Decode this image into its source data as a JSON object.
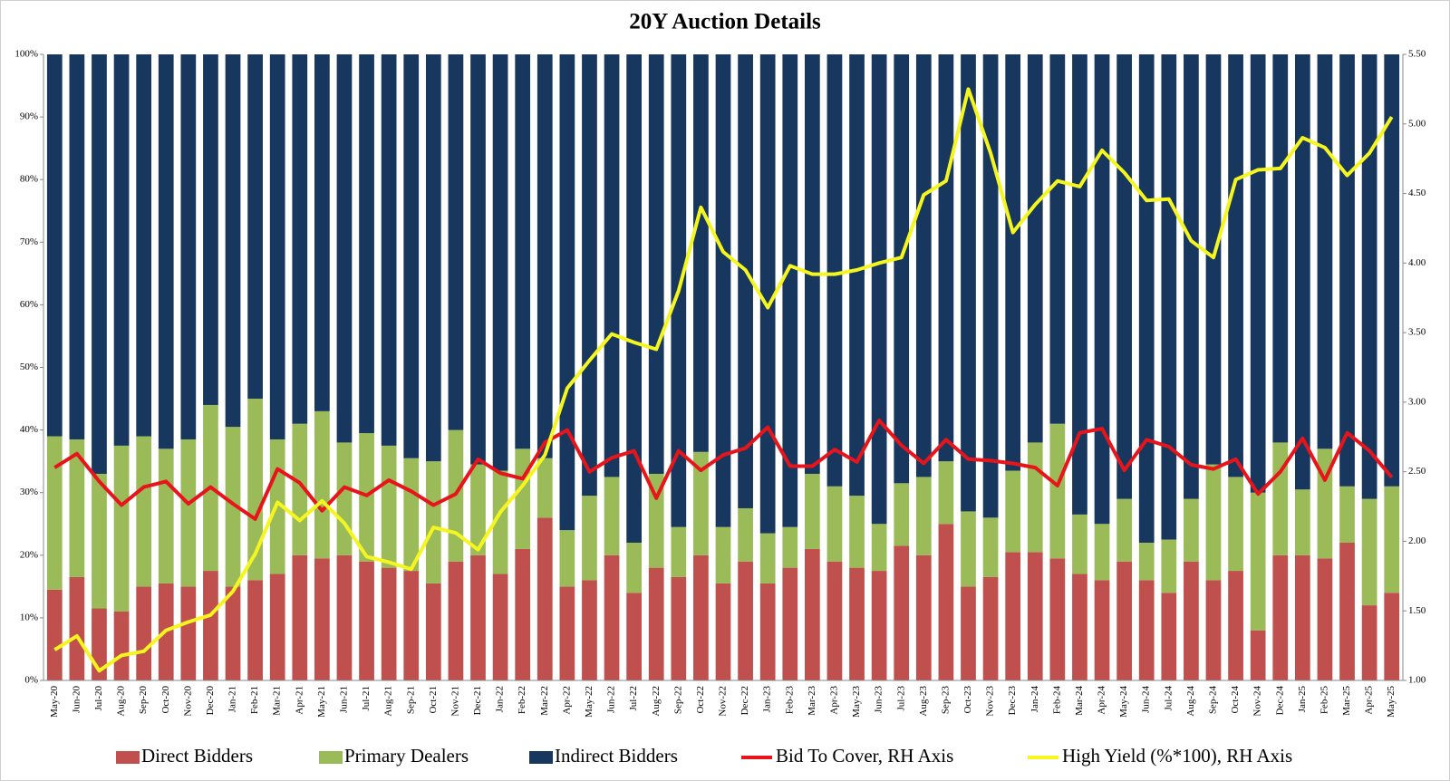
{
  "chart_data": {
    "type": "bar",
    "stacked": true,
    "title": "20Y Auction Details",
    "categories": [
      "May-20",
      "Jun-20",
      "Jul-20",
      "Aug-20",
      "Sep-20",
      "Oct-20",
      "Nov-20",
      "Dec-20",
      "Jan-21",
      "Feb-21",
      "Mar-21",
      "Apr-21",
      "May-21",
      "Jun-21",
      "Jul-21",
      "Aug-21",
      "Sep-21",
      "Oct-21",
      "Nov-21",
      "Dec-21",
      "Jan-22",
      "Feb-22",
      "Mar-22",
      "Apr-22",
      "May-22",
      "Jun-22",
      "Jul-22",
      "Aug-22",
      "Sep-22",
      "Oct-22",
      "Nov-22",
      "Dec-22",
      "Jan-23",
      "Feb-23",
      "Mar-23",
      "Apr-23",
      "May-23",
      "Jun-23",
      "Jul-23",
      "Aug-23",
      "Sep-23",
      "Oct-23",
      "Nov-23",
      "Dec-23",
      "Jan-24",
      "Feb-24",
      "Mar-24",
      "Apr-24",
      "May-24",
      "Jun-24",
      "Jul-24",
      "Aug-24",
      "Sep-24",
      "Oct-24",
      "Nov-24",
      "Dec-24",
      "Jan-25",
      "Feb-25",
      "Mar-25",
      "Apr-25",
      "May-25"
    ],
    "series": [
      {
        "name": "Direct Bidders",
        "type": "bar",
        "color": "#c0504d",
        "values": [
          14.5,
          16.5,
          11.5,
          11,
          15,
          15.5,
          15,
          17.5,
          15,
          16,
          17,
          20,
          19.5,
          20,
          19,
          18,
          17.5,
          15.5,
          19,
          20,
          17,
          21,
          26,
          15,
          16,
          20,
          14,
          18,
          16.5,
          20,
          15.5,
          19,
          15.5,
          18,
          21,
          19,
          18,
          17.5,
          21.5,
          20,
          25,
          15,
          16.5,
          20.5,
          20.5,
          19.5,
          17,
          16,
          19,
          16,
          14,
          19,
          16,
          17.5,
          8,
          20,
          20,
          19.5,
          22,
          12,
          14
        ]
      },
      {
        "name": "Primary Dealers",
        "type": "bar",
        "color": "#9bbb59",
        "values": [
          24.5,
          22,
          21.5,
          26.5,
          24,
          21.5,
          23.5,
          26.5,
          25.5,
          29,
          21.5,
          21,
          23.5,
          18,
          20.5,
          19.5,
          18,
          19.5,
          21,
          14.5,
          16.5,
          16,
          9.5,
          9,
          13.5,
          12.5,
          8,
          15,
          8,
          16.5,
          9,
          8.5,
          8,
          6.5,
          12,
          12,
          11.5,
          7.5,
          10,
          12.5,
          10,
          12,
          9.5,
          13,
          17.5,
          21.5,
          9.5,
          9,
          10,
          6,
          8.5,
          10,
          18.5,
          15,
          22,
          18,
          10.5,
          17.5,
          9,
          17,
          17
        ]
      },
      {
        "name": "Indirect Bidders",
        "type": "bar",
        "color": "#17375e",
        "values": [
          61,
          61.5,
          67,
          62.5,
          61,
          63,
          61.5,
          56,
          59.5,
          55,
          61.5,
          59,
          57,
          62,
          60.5,
          62.5,
          64.5,
          65,
          60,
          65.5,
          66.5,
          63,
          64.5,
          76,
          70.5,
          67.5,
          78,
          67,
          75.5,
          63.5,
          75.5,
          72.5,
          76.5,
          75.5,
          67,
          69,
          70.5,
          75,
          68.5,
          67.5,
          65,
          73,
          74,
          66.5,
          62,
          59,
          73.5,
          75,
          71,
          78,
          77.5,
          71,
          65.5,
          67.5,
          70,
          62,
          69.5,
          63,
          69,
          71,
          69
        ]
      },
      {
        "name": "Bid To Cover, RH Axis",
        "type": "line",
        "axis": "y2",
        "color": "#e8141b",
        "values": [
          2.53,
          2.63,
          2.43,
          2.26,
          2.39,
          2.43,
          2.27,
          2.39,
          2.27,
          2.16,
          2.52,
          2.42,
          2.22,
          2.39,
          2.33,
          2.44,
          2.36,
          2.26,
          2.34,
          2.59,
          2.49,
          2.45,
          2.71,
          2.8,
          2.5,
          2.6,
          2.65,
          2.31,
          2.65,
          2.51,
          2.62,
          2.67,
          2.82,
          2.54,
          2.54,
          2.66,
          2.57,
          2.87,
          2.69,
          2.56,
          2.73,
          2.59,
          2.58,
          2.56,
          2.53,
          2.4,
          2.78,
          2.81,
          2.51,
          2.73,
          2.68,
          2.55,
          2.52,
          2.59,
          2.34,
          2.5,
          2.74,
          2.44,
          2.78,
          2.65,
          2.46
        ]
      },
      {
        "name": "High Yield (%*100), RH Axis",
        "type": "line",
        "axis": "y2",
        "color": "#f5f51f",
        "values": [
          1.22,
          1.32,
          1.07,
          1.18,
          1.21,
          1.36,
          1.42,
          1.47,
          1.64,
          1.91,
          2.28,
          2.15,
          2.29,
          2.13,
          1.89,
          1.85,
          1.8,
          2.1,
          2.06,
          1.94,
          2.21,
          2.4,
          2.62,
          3.1,
          3.3,
          3.49,
          3.43,
          3.38,
          3.8,
          4.4,
          4.08,
          3.95,
          3.68,
          3.98,
          3.92,
          3.92,
          3.95,
          4,
          4.04,
          4.49,
          4.59,
          5.25,
          4.79,
          4.22,
          4.42,
          4.59,
          4.55,
          4.81,
          4.65,
          4.45,
          4.46,
          4.16,
          4.04,
          4.6,
          4.67,
          4.68,
          4.9,
          4.83,
          4.63,
          4.79,
          5.05
        ]
      }
    ],
    "ylim": [
      0,
      100
    ],
    "yticks": [
      {
        "value": 0,
        "label": "0%"
      },
      {
        "value": 10,
        "label": "10%"
      },
      {
        "value": 20,
        "label": "20%"
      },
      {
        "value": 30,
        "label": "30%"
      },
      {
        "value": 40,
        "label": "40%"
      },
      {
        "value": 50,
        "label": "50%"
      },
      {
        "value": 60,
        "label": "60%"
      },
      {
        "value": 70,
        "label": "70%"
      },
      {
        "value": 80,
        "label": "80%"
      },
      {
        "value": 90,
        "label": "90%"
      },
      {
        "value": 100,
        "label": "100%"
      }
    ],
    "y2lim": [
      1,
      5.5
    ],
    "y2ticks": [
      {
        "value": 1,
        "label": "1.00"
      },
      {
        "value": 1.5,
        "label": "1.50"
      },
      {
        "value": 2,
        "label": "2.00"
      },
      {
        "value": 2.5,
        "label": "2.50"
      },
      {
        "value": 3,
        "label": "3.00"
      },
      {
        "value": 3.5,
        "label": "3.50"
      },
      {
        "value": 4,
        "label": "4.00"
      },
      {
        "value": 4.5,
        "label": "4.50"
      },
      {
        "value": 5,
        "label": "5.00"
      },
      {
        "value": 5.5,
        "label": "5.50"
      }
    ],
    "legend": "bottom"
  }
}
